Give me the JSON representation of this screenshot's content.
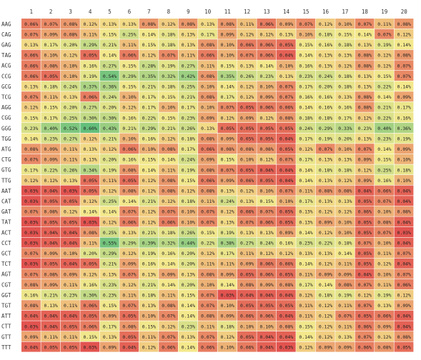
{
  "chart_data": {
    "type": "heatmap",
    "columns": [
      "1",
      "2",
      "3",
      "4",
      "5",
      "6",
      "7",
      "8",
      "9",
      "10",
      "11",
      "12",
      "13",
      "14",
      "15",
      "16",
      "17",
      "18",
      "19",
      "20"
    ],
    "rows": [
      "AAG",
      "CAG",
      "GAG",
      "TAG",
      "ACG",
      "CCG",
      "GCG",
      "TCG",
      "AGG",
      "CGG",
      "GGG",
      "TGG",
      "ATG",
      "CTG",
      "GTG",
      "TTG",
      "AAT",
      "CAT",
      "GAT",
      "TAT",
      "ACT",
      "CCT",
      "GCT",
      "TCT",
      "AGT",
      "CGT",
      "GGT",
      "TGT",
      "ATT",
      "CTT",
      "GTT",
      "TTT"
    ],
    "values": [
      [
        "0.06%",
        "0.07%",
        "0.08%",
        "0.12%",
        "0.13%",
        "0.13%",
        "0.08%",
        "0.12%",
        "0.08%",
        "0.13%",
        "0.08%",
        "0.11%",
        "0.06%",
        "0.09%",
        "0.07%",
        "0.12%",
        "0.10%",
        "0.07%",
        "0.11%",
        "0.08%"
      ],
      [
        "0.07%",
        "0.09%",
        "0.08%",
        "0.11%",
        "0.15%",
        "0.25%",
        "0.14%",
        "0.18%",
        "0.13%",
        "0.17%",
        "0.09%",
        "0.12%",
        "0.12%",
        "0.13%",
        "0.10%",
        "0.18%",
        "0.15%",
        "0.14%",
        "0.07%",
        "0.12%"
      ],
      [
        "0.13%",
        "0.17%",
        "0.20%",
        "0.29%",
        "0.21%",
        "0.11%",
        "0.15%",
        "0.18%",
        "0.13%",
        "0.08%",
        "0.10%",
        "0.06%",
        "0.06%",
        "0.05%",
        "0.15%",
        "0.16%",
        "0.18%",
        "0.13%",
        "0.19%",
        "0.14%"
      ],
      [
        "0.06%",
        "0.10%",
        "0.12%",
        "0.05%",
        "0.14%",
        "0.06%",
        "0.12%",
        "0.07%",
        "0.11%",
        "0.06%",
        "0.10%",
        "0.07%",
        "0.06%",
        "0.04%",
        "0.14%",
        "0.13%",
        "0.13%",
        "0.08%",
        "0.12%",
        "0.08%"
      ],
      [
        "0.06%",
        "0.08%",
        "0.10%",
        "0.16%",
        "0.27%",
        "0.15%",
        "0.28%",
        "0.19%",
        "0.27%",
        "0.11%",
        "0.15%",
        "0.13%",
        "0.14%",
        "0.10%",
        "0.16%",
        "0.13%",
        "0.12%",
        "0.08%",
        "0.12%",
        "0.07%"
      ],
      [
        "0.06%",
        "0.05%",
        "0.10%",
        "0.19%",
        "0.54%",
        "0.29%",
        "0.35%",
        "0.32%",
        "0.42%",
        "0.08%",
        "0.35%",
        "0.26%",
        "0.23%",
        "0.13%",
        "0.23%",
        "0.24%",
        "0.18%",
        "0.13%",
        "0.15%",
        "0.07%"
      ],
      [
        "0.13%",
        "0.18%",
        "0.24%",
        "0.37%",
        "0.36%",
        "0.15%",
        "0.21%",
        "0.18%",
        "0.25%",
        "0.10%",
        "0.14%",
        "0.12%",
        "0.10%",
        "0.07%",
        "0.17%",
        "0.20%",
        "0.18%",
        "0.13%",
        "0.22%",
        "0.14%"
      ],
      [
        "0.07%",
        "0.11%",
        "0.13%",
        "0.06%",
        "0.24%",
        "0.10%",
        "0.17%",
        "0.15%",
        "0.21%",
        "0.08%",
        "0.17%",
        "0.12%",
        "0.09%",
        "0.07%",
        "0.16%",
        "0.16%",
        "0.13%",
        "0.08%",
        "0.14%",
        "0.09%"
      ],
      [
        "0.12%",
        "0.15%",
        "0.20%",
        "0.27%",
        "0.20%",
        "0.12%",
        "0.17%",
        "0.10%",
        "0.17%",
        "0.10%",
        "0.07%",
        "0.05%",
        "0.06%",
        "0.06%",
        "0.14%",
        "0.16%",
        "0.16%",
        "0.08%",
        "0.21%",
        "0.17%"
      ],
      [
        "0.15%",
        "0.17%",
        "0.25%",
        "0.30%",
        "0.30%",
        "0.16%",
        "0.22%",
        "0.15%",
        "0.23%",
        "0.09%",
        "0.12%",
        "0.09%",
        "0.12%",
        "0.08%",
        "0.18%",
        "0.18%",
        "0.17%",
        "0.12%",
        "0.22%",
        "0.16%"
      ],
      [
        "0.23%",
        "0.40%",
        "0.52%",
        "0.60%",
        "0.43%",
        "0.21%",
        "0.29%",
        "0.21%",
        "0.26%",
        "0.13%",
        "0.05%",
        "0.05%",
        "0.05%",
        "0.05%",
        "0.24%",
        "0.29%",
        "0.33%",
        "0.23%",
        "0.40%",
        "0.36%"
      ],
      [
        "0.14%",
        "0.23%",
        "0.27%",
        "0.12%",
        "0.21%",
        "0.10%",
        "0.16%",
        "0.12%",
        "0.18%",
        "0.08%",
        "0.09%",
        "0.05%",
        "0.05%",
        "0.04%",
        "0.17%",
        "0.19%",
        "0.20%",
        "0.13%",
        "0.23%",
        "0.19%"
      ],
      [
        "0.08%",
        "0.09%",
        "0.11%",
        "0.13%",
        "0.12%",
        "0.06%",
        "0.10%",
        "0.08%",
        "0.17%",
        "0.06%",
        "0.08%",
        "0.08%",
        "0.08%",
        "0.05%",
        "0.12%",
        "0.07%",
        "0.10%",
        "0.07%",
        "0.14%",
        "0.09%"
      ],
      [
        "0.07%",
        "0.09%",
        "0.11%",
        "0.13%",
        "0.20%",
        "0.16%",
        "0.15%",
        "0.14%",
        "0.24%",
        "0.09%",
        "0.15%",
        "0.10%",
        "0.12%",
        "0.07%",
        "0.17%",
        "0.13%",
        "0.13%",
        "0.09%",
        "0.15%",
        "0.10%"
      ],
      [
        "0.17%",
        "0.22%",
        "0.26%",
        "0.34%",
        "0.19%",
        "0.08%",
        "0.14%",
        "0.11%",
        "0.19%",
        "0.08%",
        "0.07%",
        "0.05%",
        "0.04%",
        "0.04%",
        "0.14%",
        "0.18%",
        "0.18%",
        "0.12%",
        "0.25%",
        "0.18%"
      ],
      [
        "0.12%",
        "0.12%",
        "0.13%",
        "0.05%",
        "0.11%",
        "0.05%",
        "0.12%",
        "0.08%",
        "0.15%",
        "0.06%",
        "0.09%",
        "0.06%",
        "0.05%",
        "0.04%",
        "0.14%",
        "0.13%",
        "0.12%",
        "0.09%",
        "0.16%",
        "0.10%"
      ],
      [
        "0.03%",
        "0.04%",
        "0.03%",
        "0.05%",
        "0.12%",
        "0.08%",
        "0.12%",
        "0.08%",
        "0.12%",
        "0.08%",
        "0.13%",
        "0.12%",
        "0.10%",
        "0.07%",
        "0.11%",
        "0.08%",
        "0.08%",
        "0.04%",
        "0.06%",
        "0.04%"
      ],
      [
        "0.03%",
        "0.05%",
        "0.05%",
        "0.12%",
        "0.25%",
        "0.14%",
        "0.21%",
        "0.12%",
        "0.18%",
        "0.11%",
        "0.24%",
        "0.13%",
        "0.15%",
        "0.10%",
        "0.17%",
        "0.13%",
        "0.13%",
        "0.05%",
        "0.07%",
        "0.04%"
      ],
      [
        "0.07%",
        "0.08%",
        "0.12%",
        "0.14%",
        "0.14%",
        "0.07%",
        "0.12%",
        "0.07%",
        "0.10%",
        "0.07%",
        "0.12%",
        "0.06%",
        "0.07%",
        "0.05%",
        "0.13%",
        "0.12%",
        "0.12%",
        "0.06%",
        "0.10%",
        "0.08%"
      ],
      [
        "0.03%",
        "0.05%",
        "0.05%",
        "0.03%",
        "0.12%",
        "0.06%",
        "0.12%",
        "0.06%",
        "0.10%",
        "0.07%",
        "0.13%",
        "0.07%",
        "0.06%",
        "0.05%",
        "0.13%",
        "0.09%",
        "0.10%",
        "0.05%",
        "0.08%",
        "0.04%"
      ],
      [
        "0.03%",
        "0.04%",
        "0.04%",
        "0.08%",
        "0.25%",
        "0.13%",
        "0.21%",
        "0.18%",
        "0.26%",
        "0.15%",
        "0.19%",
        "0.13%",
        "0.13%",
        "0.09%",
        "0.14%",
        "0.12%",
        "0.10%",
        "0.05%",
        "0.07%",
        "0.03%"
      ],
      [
        "0.03%",
        "0.04%",
        "0.04%",
        "0.11%",
        "0.55%",
        "0.29%",
        "0.39%",
        "0.32%",
        "0.44%",
        "0.22%",
        "0.38%",
        "0.27%",
        "0.24%",
        "0.16%",
        "0.23%",
        "0.22%",
        "0.18%",
        "0.07%",
        "0.10%",
        "0.04%"
      ],
      [
        "0.07%",
        "0.09%",
        "0.10%",
        "0.20%",
        "0.29%",
        "0.12%",
        "0.19%",
        "0.16%",
        "0.20%",
        "0.12%",
        "0.17%",
        "0.11%",
        "0.12%",
        "0.12%",
        "0.13%",
        "0.13%",
        "0.14%",
        "0.05%",
        "0.11%",
        "0.07%"
      ],
      [
        "0.03%",
        "0.05%",
        "0.04%",
        "0.05%",
        "0.21%",
        "0.09%",
        "0.16%",
        "0.14%",
        "0.20%",
        "0.11%",
        "0.11%",
        "0.09%",
        "0.06%",
        "0.06%",
        "0.14%",
        "0.12%",
        "0.11%",
        "0.05%",
        "0.12%",
        "0.04%"
      ],
      [
        "0.07%",
        "0.08%",
        "0.09%",
        "0.12%",
        "0.13%",
        "0.07%",
        "0.13%",
        "0.09%",
        "0.13%",
        "0.08%",
        "0.09%",
        "0.05%",
        "0.06%",
        "0.05%",
        "0.11%",
        "0.09%",
        "0.09%",
        "0.04%",
        "0.10%",
        "0.07%"
      ],
      [
        "0.08%",
        "0.09%",
        "0.11%",
        "0.16%",
        "0.23%",
        "0.12%",
        "0.21%",
        "0.14%",
        "0.20%",
        "0.10%",
        "0.14%",
        "0.08%",
        "0.09%",
        "0.08%",
        "0.17%",
        "0.14%",
        "0.08%",
        "0.07%",
        "0.11%",
        "0.06%"
      ],
      [
        "0.16%",
        "0.21%",
        "0.23%",
        "0.30%",
        "0.23%",
        "0.11%",
        "0.18%",
        "0.11%",
        "0.15%",
        "0.07%",
        "0.03%",
        "0.04%",
        "0.04%",
        "0.04%",
        "0.12%",
        "0.18%",
        "0.19%",
        "0.12%",
        "0.19%",
        "0.12%"
      ],
      [
        "0.08%",
        "0.13%",
        "0.11%",
        "0.06%",
        "0.15%",
        "0.07%",
        "0.13%",
        "0.08%",
        "0.14%",
        "0.07%",
        "0.10%",
        "0.05%",
        "0.05%",
        "0.05%",
        "0.11%",
        "0.12%",
        "0.11%",
        "0.07%",
        "0.13%",
        "0.09%"
      ],
      [
        "0.04%",
        "0.04%",
        "0.04%",
        "0.05%",
        "0.09%",
        "0.05%",
        "0.10%",
        "0.07%",
        "0.14%",
        "0.08%",
        "0.09%",
        "0.06%",
        "0.06%",
        "0.04%",
        "0.11%",
        "0.12%",
        "0.07%",
        "0.05%",
        "0.06%",
        "0.04%"
      ],
      [
        "0.03%",
        "0.04%",
        "0.05%",
        "0.06%",
        "0.17%",
        "0.08%",
        "0.15%",
        "0.12%",
        "0.23%",
        "0.11%",
        "0.18%",
        "0.10%",
        "0.10%",
        "0.08%",
        "0.15%",
        "0.12%",
        "0.11%",
        "0.06%",
        "0.09%",
        "0.04%"
      ],
      [
        "0.09%",
        "0.11%",
        "0.11%",
        "0.15%",
        "0.13%",
        "0.05%",
        "0.11%",
        "0.07%",
        "0.13%",
        "0.07%",
        "0.12%",
        "0.05%",
        "0.04%",
        "0.04%",
        "0.14%",
        "0.12%",
        "0.13%",
        "0.07%",
        "0.12%",
        "0.08%"
      ],
      [
        "0.04%",
        "0.05%",
        "0.05%",
        "0.03%",
        "0.09%",
        "0.04%",
        "0.12%",
        "0.06%",
        "0.14%",
        "0.06%",
        "0.10%",
        "0.06%",
        "0.04%",
        "0.03%",
        "0.12%",
        "0.09%",
        "0.09%",
        "0.06%",
        "0.08%",
        "0.05%"
      ]
    ],
    "color_scale": {
      "low": "#e2534f",
      "mid": "#f4e88c",
      "high": "#63bf7b",
      "min": 0.03,
      "mid_value": 0.14,
      "max": 0.6
    },
    "grid": true,
    "title": "",
    "xlabel": "",
    "ylabel": ""
  }
}
